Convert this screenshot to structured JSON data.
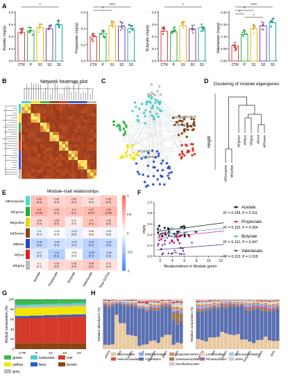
{
  "figure": {
    "panel_letters": [
      "A",
      "B",
      "C",
      "D",
      "E",
      "F",
      "G",
      "H"
    ]
  },
  "groups": [
    "CTR",
    "P",
    "S1",
    "S2",
    "S3"
  ],
  "panel_a": {
    "charts": [
      {
        "ylabel": "Acetate (mg/g)",
        "ylim": [
          0,
          0.8
        ],
        "ticks": [
          "0.0",
          "0.2",
          "0.4",
          "0.6",
          "0.8"
        ],
        "values": [
          0.47,
          0.5,
          0.55,
          0.53,
          0.6
        ],
        "sig": [
          "*"
        ]
      },
      {
        "ylabel": "Propionate (mg/g)",
        "ylim": [
          0,
          0.6
        ],
        "ticks": [
          "0.0",
          "0.2",
          "0.4",
          "0.6"
        ],
        "values": [
          0.3,
          0.34,
          0.44,
          0.43,
          0.4
        ],
        "sig": [
          "****",
          "*"
        ]
      },
      {
        "ylabel": "Butyrate (mg/g)",
        "ylim": [
          0,
          0.8
        ],
        "ticks": [
          "0.0",
          "0.2",
          "0.4",
          "0.6",
          "0.8"
        ],
        "values": [
          0.49,
          0.48,
          0.58,
          0.53,
          0.55
        ],
        "sig": [
          "*"
        ]
      },
      {
        "ylabel": "Valerianate (mg/g)",
        "ylim": [
          0,
          0.2
        ],
        "ticks": [
          "0.00",
          "0.05",
          "0.10",
          "0.15",
          "0.20"
        ],
        "values": [
          0.063,
          0.11,
          0.133,
          0.145,
          0.158
        ],
        "sig": [
          "****",
          "*",
          "*",
          "*"
        ]
      }
    ],
    "bar_colors": [
      "#e23a3a",
      "#2eb24a",
      "#f0b400",
      "#7d3fa8",
      "#22a3a3"
    ]
  },
  "panel_b": {
    "title": "Network heatmap plot"
  },
  "panel_c": {
    "labels": [
      "OTU2782",
      "OTU1919",
      "OTU2615",
      "OTU3035",
      "OTU2784",
      "OTU4"
    ]
  },
  "panel_d": {
    "title": "Clustering of module eigengenes",
    "ylabel": "Height",
    "leaves": [
      "MEturquoise",
      "MEyellow",
      "MEgreen",
      "MEblue",
      "MEgrey",
      "MEred",
      "MEbrown"
    ]
  },
  "panel_e": {
    "title": "Module–trait relationships",
    "rows": [
      "MEturquoise",
      "MEgreen",
      "MEyellow",
      "MEbrown",
      "MEblue",
      "MEred",
      "MEgrey"
    ],
    "row_colors": [
      "#40e0d0",
      "#22aa44",
      "#e8d800",
      "#8b4513",
      "#2244cc",
      "#dd2222",
      "#bbbbbb"
    ],
    "cols": [
      "Acetate",
      "Propionate",
      "Butyrate",
      "Valerianate",
      "Total SCFAs"
    ],
    "cells": [
      [
        [
          "0.42",
          "(0.1)"
        ],
        [
          "0.28",
          "(0.3)"
        ],
        [
          "0.33",
          "(0.2)"
        ],
        [
          "0.22",
          "(0.4)"
        ],
        [
          "0.38",
          "(0.2)"
        ]
      ],
      [
        [
          "0.5",
          "(0.05)"
        ],
        [
          "0.39",
          "(0.1)"
        ],
        [
          "0.4",
          "(0.1)"
        ],
        [
          "0.47",
          "(0.07)"
        ],
        [
          "0.49",
          "(0.06)"
        ]
      ],
      [
        [
          "0.29",
          "(0.3)"
        ],
        [
          "0.35",
          "(0.2)"
        ],
        [
          "0.12",
          "(0.7)"
        ],
        [
          "0.4",
          "(0.1)"
        ],
        [
          "0.32",
          "(0.2)"
        ]
      ],
      [
        [
          "-0.1",
          "(0.7)"
        ],
        [
          "-0.02",
          "(0.9)"
        ],
        [
          "-0.13",
          "(0.6)"
        ],
        [
          "0.06",
          "(0.8)"
        ],
        [
          "-0.07",
          "(0.8)"
        ]
      ],
      [
        [
          "-0.34",
          "(0.2)"
        ],
        [
          "-0.26",
          "(0.3)"
        ],
        [
          "-0.23",
          "(0.4)"
        ],
        [
          "-0.37",
          "(0.2)"
        ],
        [
          "-0.31",
          "(0.2)"
        ]
      ],
      [
        [
          "-0.17",
          "(0.5)"
        ],
        [
          "-0.4",
          "(0.1)"
        ],
        [
          "-0.02",
          "(0.9)"
        ],
        [
          "-0.39",
          "(0.1)"
        ],
        [
          "-0.26",
          "(0.3)"
        ]
      ],
      [
        [
          "0.1",
          "(0.7)"
        ],
        [
          "0.28",
          "(0.3)"
        ],
        [
          "0.28",
          "(0.3)"
        ],
        [
          "0.36",
          "(0.2)"
        ],
        [
          "0.21",
          "(0.4)"
        ]
      ]
    ],
    "values": [
      [
        0.42,
        0.28,
        0.33,
        0.22,
        0.38
      ],
      [
        0.5,
        0.39,
        0.4,
        0.47,
        0.49
      ],
      [
        0.29,
        0.35,
        0.12,
        0.4,
        0.32
      ],
      [
        -0.1,
        -0.02,
        -0.13,
        0.06,
        -0.07
      ],
      [
        -0.34,
        -0.26,
        -0.23,
        -0.37,
        -0.31
      ],
      [
        -0.17,
        -0.4,
        -0.02,
        -0.39,
        -0.26
      ],
      [
        0.1,
        0.28,
        0.28,
        0.36,
        0.21
      ]
    ],
    "scale_ticks": [
      "1",
      "0.5",
      "0",
      "-0.5",
      "-1"
    ]
  },
  "panel_f": {
    "ylabel": "mg/g",
    "xlabel": "Bioabundance in Module green",
    "xticks": [
      "2",
      "4",
      "6",
      "8",
      "10",
      "12"
    ],
    "yticks": [
      "0.0",
      "0.2",
      "0.4",
      "0.6",
      "0.8",
      "1.0"
    ],
    "legend": [
      {
        "name": "Acetate",
        "stat": "R² = 0.249, P = 0.011",
        "color": "#111111",
        "marker": "circle"
      },
      {
        "name": "Propionate",
        "stat": "R² = 0.152, P = 0.054",
        "color": "#cc2277",
        "marker": "square"
      },
      {
        "name": "Butyrate",
        "stat": "R² = 0.161, P = 0.047",
        "color": "#4a9aa8",
        "marker": "triangle"
      },
      {
        "name": "Valerianate",
        "stat": "R² = 0.222, P = 0.018",
        "color": "#4a2a8a",
        "marker": "tri-down"
      }
    ]
  },
  "panel_g": {
    "ylabel": "Module composition (%)",
    "categories": [
      "CTR",
      "P",
      "S1",
      "S2",
      "S3"
    ],
    "yticks": [
      "0",
      "20",
      "40",
      "60",
      "80",
      "100"
    ],
    "legend": [
      {
        "name": "green",
        "color": "#3cb44b"
      },
      {
        "name": "turquoise",
        "color": "#48d1cc"
      },
      {
        "name": "grey",
        "color": "#bbbbbb"
      },
      {
        "name": "yellow",
        "color": "#f2e600"
      },
      {
        "name": "blue",
        "color": "#3355cc"
      },
      {
        "name": "red",
        "color": "#d43a2a"
      },
      {
        "name": "brown",
        "color": "#8b4513"
      }
    ]
  },
  "panel_h": {
    "ylabel": "Relative abundance (%)",
    "ylabel_right": "Relative composition (%)",
    "categories": [
      "yellow",
      "red",
      "brown",
      "blue",
      "turquoise",
      "green",
      "grey"
    ],
    "legend": [
      {
        "name": "Bacteroidales",
        "color": "#e8c9a0"
      },
      {
        "name": "Clostridiales",
        "color": "#5a6fb0"
      },
      {
        "name": "Gastranaerophilales",
        "color": "#9a7a5a"
      },
      {
        "name": "Rhodospirillales",
        "color": "#c060a0"
      },
      {
        "name": "Bifidobacteriales",
        "color": "#88aaee"
      },
      {
        "name": "Erysipelotrichales",
        "color": "#e08a50"
      },
      {
        "name": "Lactobacillales",
        "color": "#e8d8b0"
      },
      {
        "name": "Verrucomicrobiales",
        "color": "#a0d0f0"
      },
      {
        "name": "Selenomonadales",
        "color": "#d24a3a"
      },
      {
        "name": "Desulfovibrionales",
        "color": "#f0b8c8"
      },
      {
        "name": "others",
        "color": "#cccccc"
      }
    ],
    "colors": [
      "#e8c9a0",
      "#5a6fb0",
      "#9a7a5a",
      "#c060a0",
      "#88aaee",
      "#e08a50",
      "#e8d8b0",
      "#a0d0f0",
      "#d24a3a",
      "#f0b8c8",
      "#cccccc"
    ]
  }
}
